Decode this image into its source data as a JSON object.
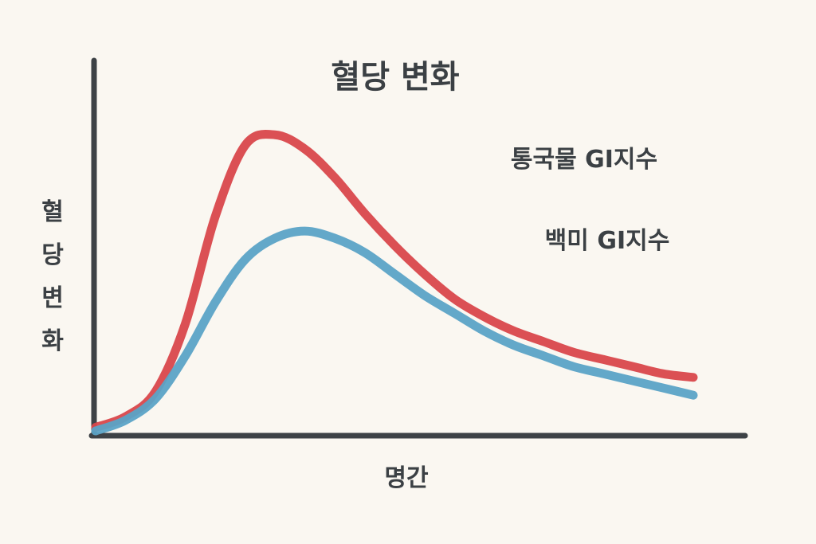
{
  "chart_data": {
    "type": "line",
    "title": "혈당 변화",
    "xlabel": "명간",
    "ylabel_chars": [
      "혈",
      "당",
      "변",
      "화"
    ],
    "x": [
      0,
      5,
      10,
      15,
      20,
      25,
      30,
      35,
      40,
      45,
      50,
      55,
      60,
      65,
      70,
      75,
      80,
      85,
      90,
      95,
      100
    ],
    "xlim": [
      0,
      100
    ],
    "ylim": [
      0,
      100
    ],
    "grid": false,
    "legend": "right",
    "series": [
      {
        "name": "통국물 GI지수",
        "color": "#d9474b",
        "values": [
          1,
          4,
          11,
          30,
          60,
          80,
          83,
          79,
          71,
          61,
          52,
          44,
          37,
          32,
          28,
          25,
          22,
          20,
          18,
          16,
          15
        ]
      },
      {
        "name": "백미 GI지수",
        "color": "#5ba3c6",
        "values": [
          0,
          3,
          9,
          21,
          36,
          48,
          54,
          56,
          54,
          50,
          44,
          38,
          33,
          28,
          24,
          21,
          18,
          16,
          14,
          12,
          10
        ]
      }
    ]
  }
}
